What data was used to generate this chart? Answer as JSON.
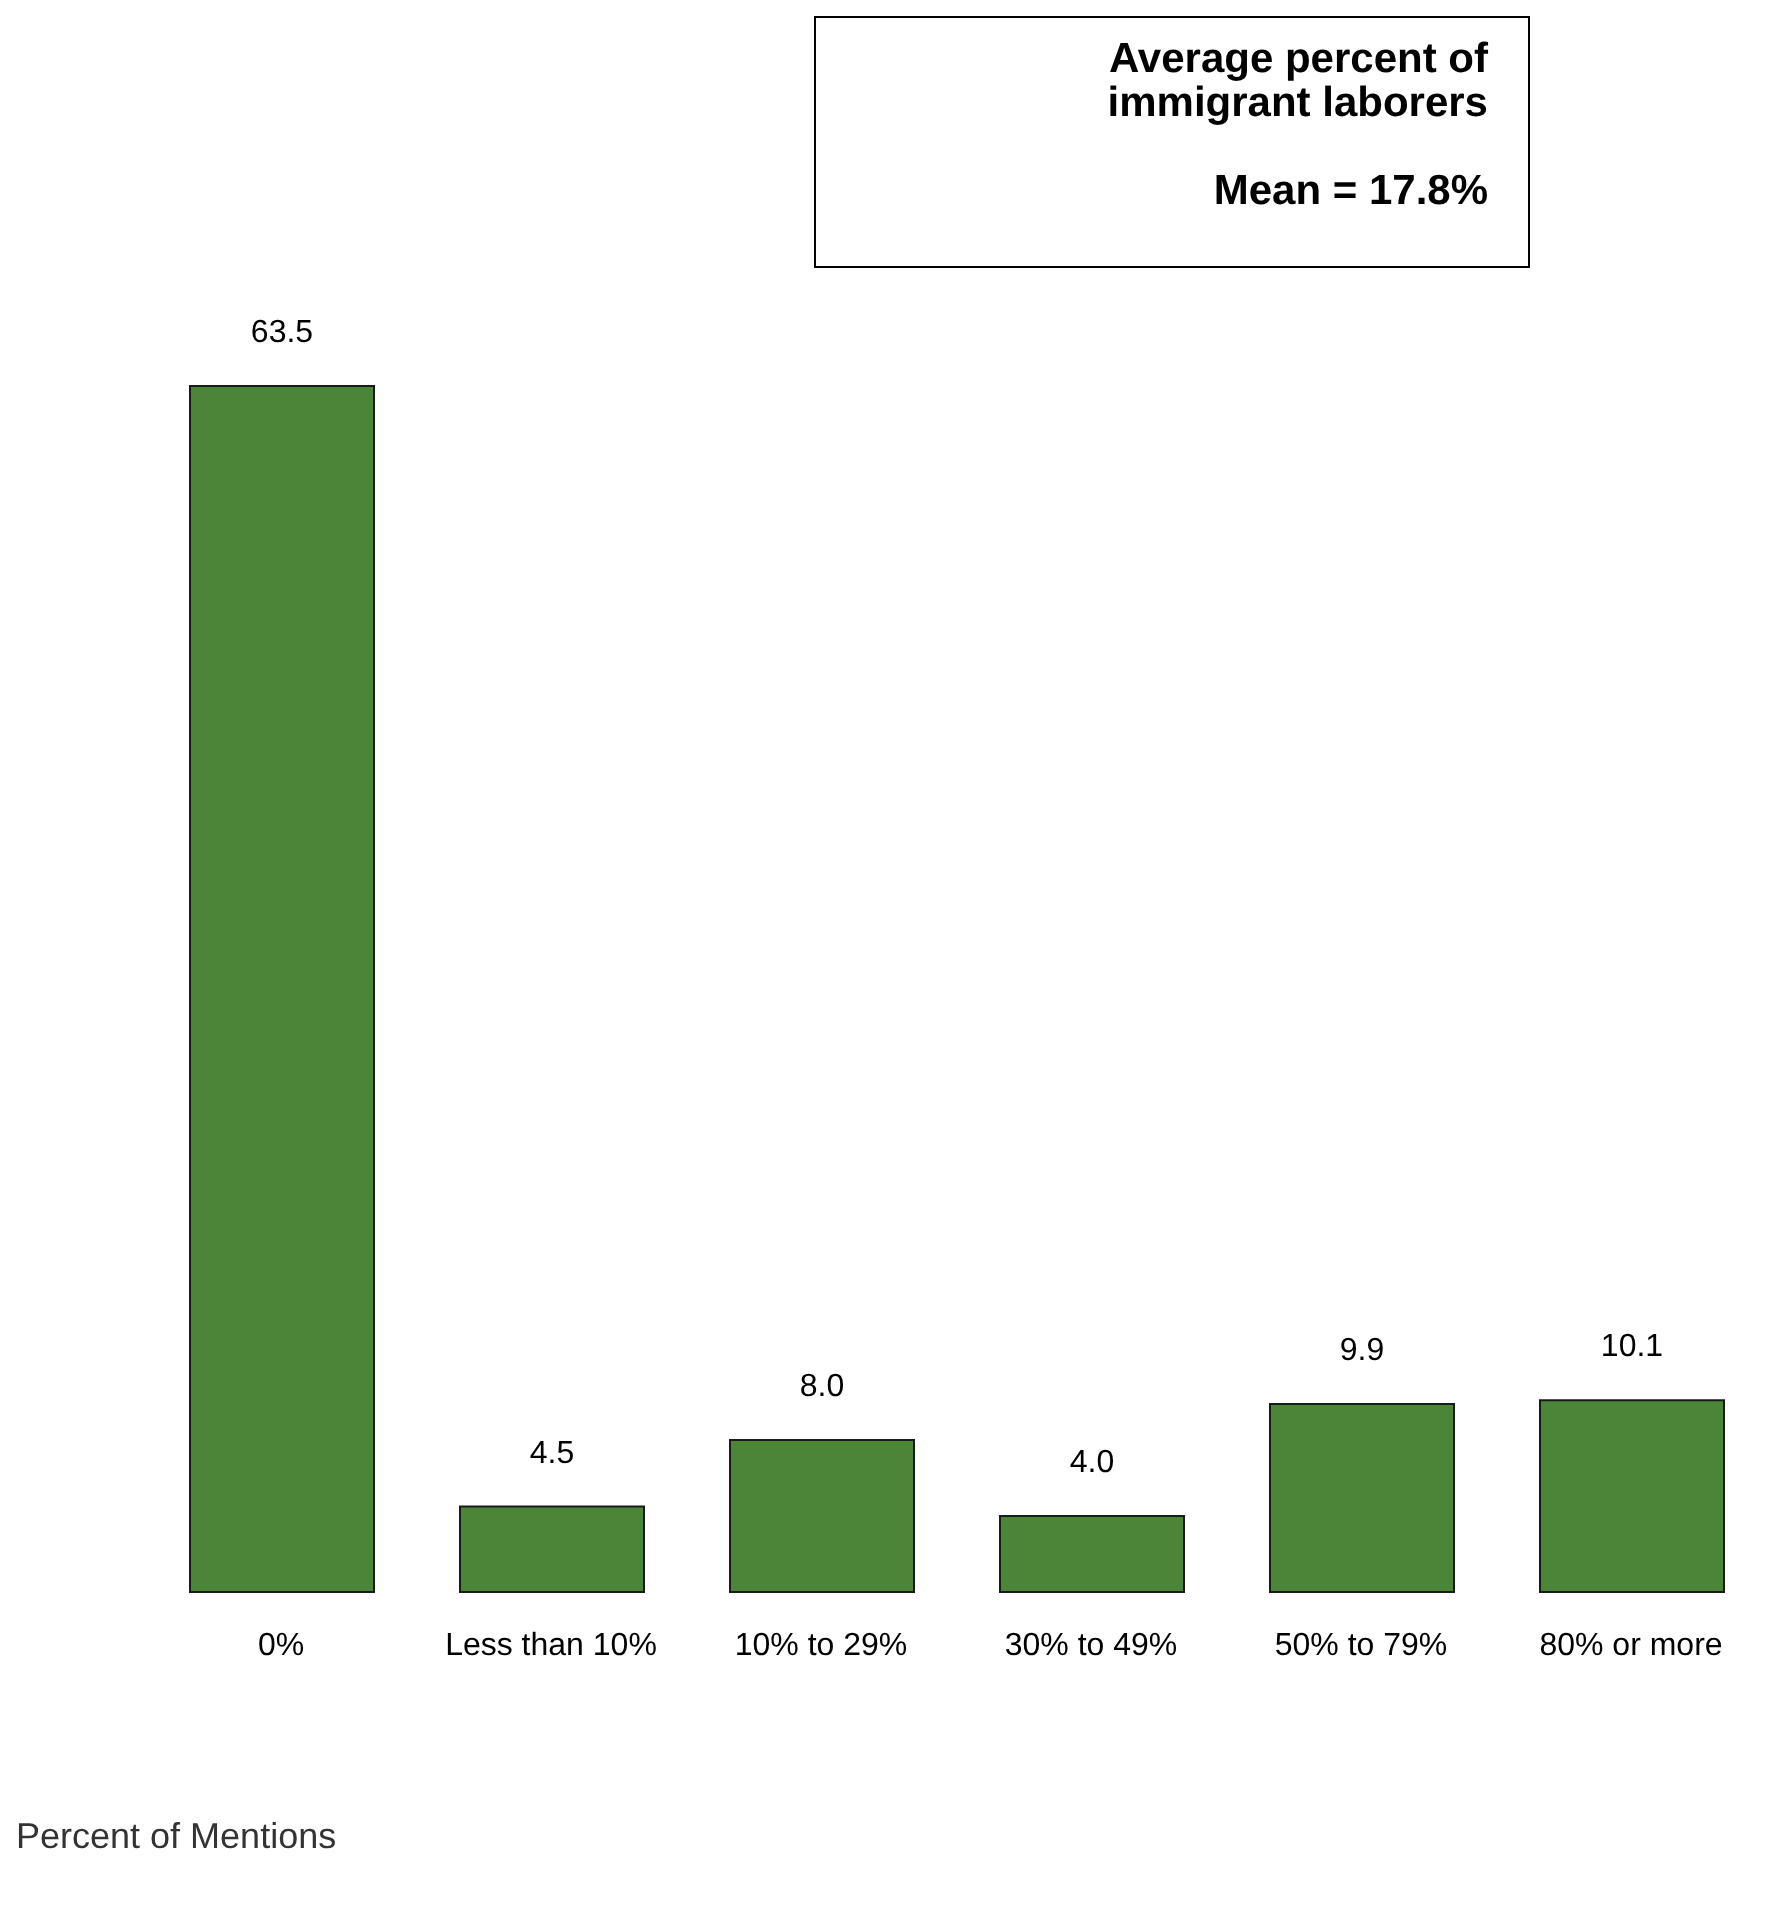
{
  "chart_data": {
    "type": "bar",
    "categories": [
      "0%",
      "Less than 10%",
      "10% to 29%",
      "30% to 49%",
      "50% to 79%",
      "80% or more"
    ],
    "values": [
      63.5,
      4.5,
      8.0,
      4.0,
      9.9,
      10.1
    ],
    "color": "#4a8538",
    "value_labels": [
      "63.5",
      "4.5",
      "8.0",
      "4.0",
      "9.9",
      "10.1"
    ],
    "annotations": [
      "Average percent of immigrant laborers",
      "Mean = 17.8%",
      "Percent of Mentions"
    ]
  }
}
